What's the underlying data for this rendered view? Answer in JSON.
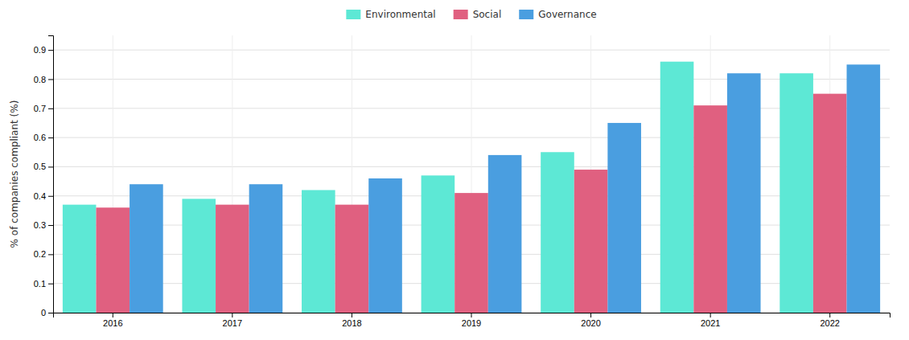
{
  "chart_data": {
    "type": "bar",
    "categories": [
      "2016",
      "2017",
      "2018",
      "2019",
      "2020",
      "2021",
      "2022"
    ],
    "series": [
      {
        "name": "Environmental",
        "color": "#5de8d5",
        "values": [
          0.37,
          0.39,
          0.42,
          0.47,
          0.55,
          0.86,
          0.82
        ]
      },
      {
        "name": "Social",
        "color": "#e06080",
        "values": [
          0.36,
          0.37,
          0.37,
          0.41,
          0.49,
          0.71,
          0.75
        ]
      },
      {
        "name": "Governance",
        "color": "#4a9ee0",
        "values": [
          0.44,
          0.44,
          0.46,
          0.54,
          0.65,
          0.82,
          0.85
        ]
      }
    ],
    "ylabel": "% of companies compliant (%)",
    "ylim": [
      0,
      0.95
    ],
    "yticks": [
      0,
      0.1,
      0.2,
      0.3,
      0.4,
      0.5,
      0.6,
      0.7,
      0.8,
      0.9
    ],
    "grid": true,
    "legend": "top"
  }
}
